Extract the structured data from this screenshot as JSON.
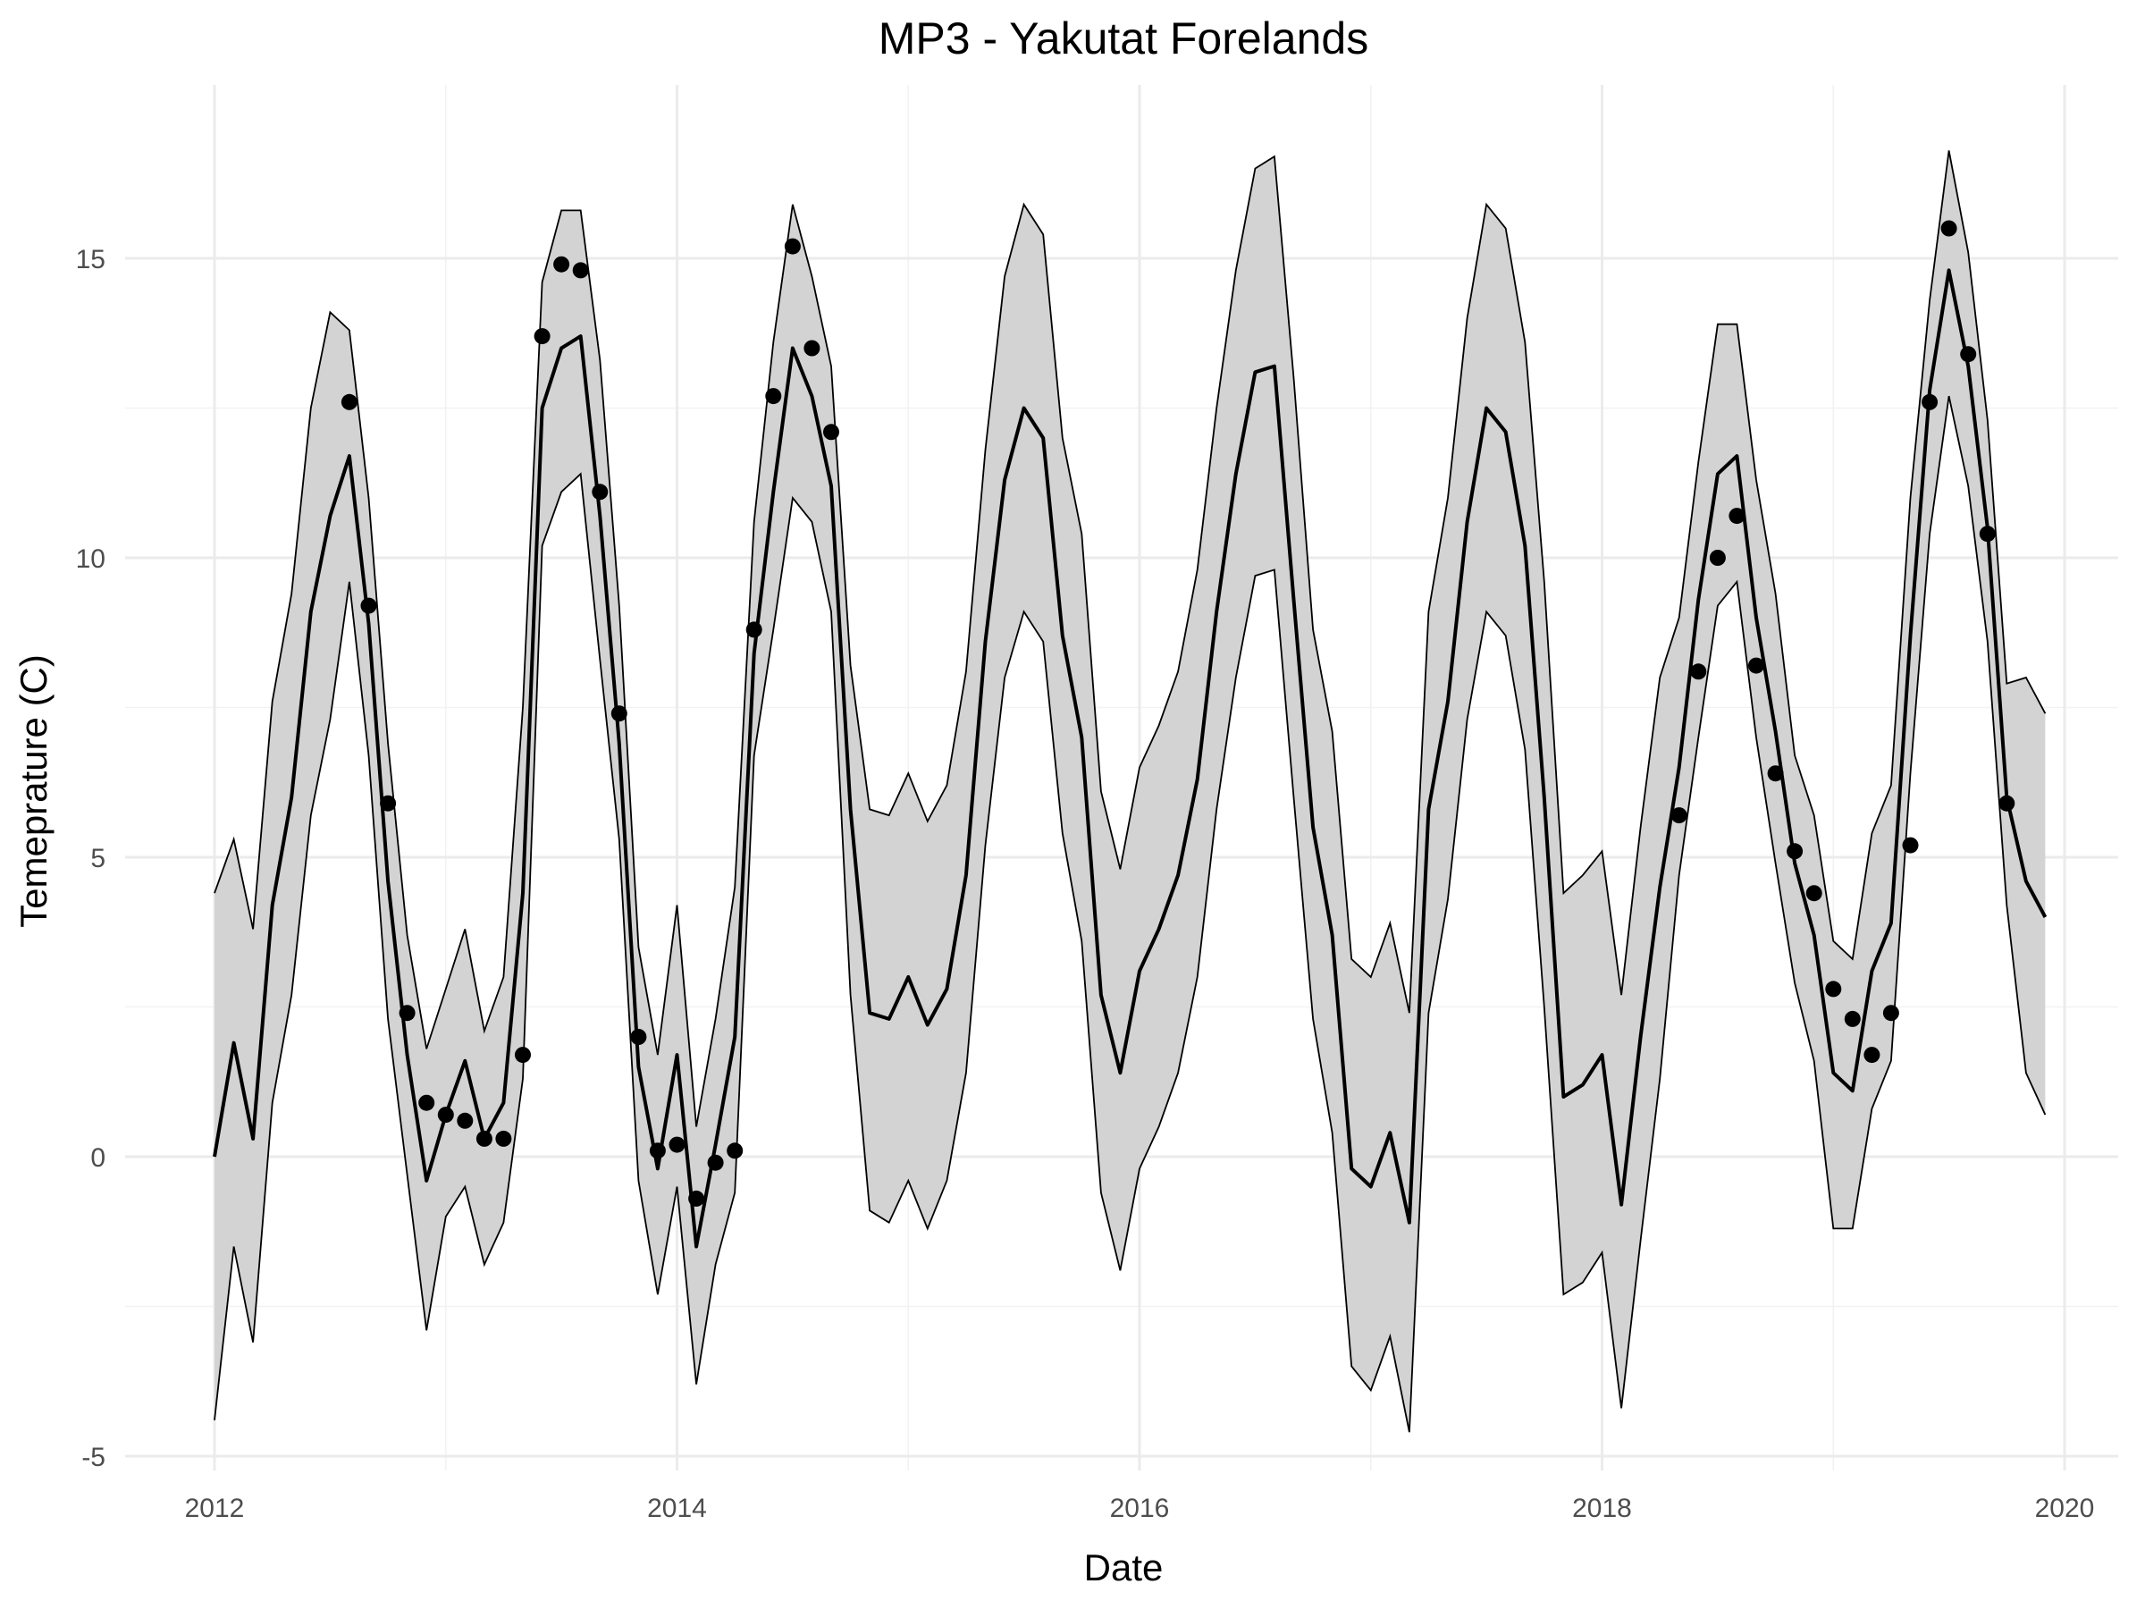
{
  "chart_data": {
    "type": "line",
    "title": "MP3 - Yakutat Forelands",
    "xlabel": "Date",
    "ylabel": "Temeprature (C)",
    "xlim": [
      2012,
      2020
    ],
    "ylim": [
      -5,
      17
    ],
    "x_ticks": [
      "2012",
      "2014",
      "2016",
      "2018",
      "2020"
    ],
    "y_ticks": [
      "-5",
      "0",
      "5",
      "10",
      "15"
    ],
    "grid": true,
    "colors": {
      "band": "#d3d3d3",
      "line": "#000000",
      "points": "#000000"
    },
    "series": [
      {
        "type": "line-with-ribbon",
        "x": [
          "2012-01",
          "2012-02",
          "2012-03",
          "2012-04",
          "2012-05",
          "2012-06",
          "2012-07",
          "2012-08",
          "2012-09",
          "2012-10",
          "2012-11",
          "2012-12",
          "2013-01",
          "2013-02",
          "2013-03",
          "2013-04",
          "2013-05",
          "2013-06",
          "2013-07",
          "2013-08",
          "2013-09",
          "2013-10",
          "2013-11",
          "2013-12",
          "2014-01",
          "2014-02",
          "2014-03",
          "2014-04",
          "2014-05",
          "2014-06",
          "2014-07",
          "2014-08",
          "2014-09",
          "2014-10",
          "2014-11",
          "2014-12",
          "2015-01",
          "2015-02",
          "2015-03",
          "2015-04",
          "2015-05",
          "2015-06",
          "2015-07",
          "2015-08",
          "2015-09",
          "2015-10",
          "2015-11",
          "2015-12",
          "2016-01",
          "2016-02",
          "2016-03",
          "2016-04",
          "2016-05",
          "2016-06",
          "2016-07",
          "2016-08",
          "2016-09",
          "2016-10",
          "2016-11",
          "2016-12",
          "2017-01",
          "2017-02",
          "2017-03",
          "2017-04",
          "2017-05",
          "2017-06",
          "2017-07",
          "2017-08",
          "2017-09",
          "2017-10",
          "2017-11",
          "2017-12",
          "2018-01",
          "2018-02",
          "2018-03",
          "2018-04",
          "2018-05",
          "2018-06",
          "2018-07",
          "2018-08",
          "2018-09",
          "2018-10",
          "2018-11",
          "2018-12",
          "2019-01",
          "2019-02",
          "2019-03",
          "2019-04",
          "2019-05",
          "2019-06",
          "2019-07",
          "2019-08",
          "2019-09",
          "2019-10",
          "2019-11",
          "2019-12"
        ],
        "mean": [
          0.0,
          1.9,
          0.3,
          4.2,
          6.0,
          9.1,
          10.7,
          11.7,
          8.9,
          4.6,
          1.7,
          -0.4,
          0.7,
          1.6,
          0.3,
          0.9,
          4.4,
          12.5,
          13.5,
          13.7,
          10.7,
          6.9,
          1.5,
          -0.2,
          1.7,
          -1.5,
          0.2,
          2.0,
          8.4,
          11.1,
          13.5,
          12.7,
          11.2,
          5.8,
          2.4,
          2.3,
          3.0,
          2.2,
          2.8,
          4.7,
          8.6,
          11.3,
          12.5,
          12.0,
          8.7,
          7.0,
          2.7,
          1.4,
          3.1,
          3.8,
          4.7,
          6.3,
          9.1,
          11.4,
          13.1,
          13.2,
          9.3,
          5.5,
          3.7,
          -0.2,
          -0.5,
          0.4,
          -1.1,
          5.8,
          7.6,
          10.6,
          12.5,
          12.1,
          10.2,
          6.0,
          1.0,
          1.2,
          1.7,
          -0.8,
          2.0,
          4.5,
          6.5,
          9.3,
          11.4,
          11.7,
          9.0,
          7.1,
          4.9,
          3.7,
          1.4,
          1.1,
          3.1,
          3.9,
          8.7,
          12.8,
          14.8,
          13.2,
          10.5,
          6.0,
          4.6,
          4.0
        ],
        "upper": [
          4.4,
          5.3,
          3.8,
          7.6,
          9.4,
          12.5,
          14.1,
          13.8,
          11.0,
          6.9,
          3.7,
          1.8,
          2.8,
          3.8,
          2.1,
          3.0,
          7.5,
          14.6,
          15.8,
          15.8,
          13.3,
          9.2,
          3.5,
          1.7,
          4.2,
          0.5,
          2.3,
          4.5,
          10.6,
          13.6,
          15.9,
          14.7,
          13.2,
          8.2,
          5.8,
          5.7,
          6.4,
          5.6,
          6.2,
          8.1,
          11.8,
          14.7,
          15.9,
          15.4,
          12.0,
          10.4,
          6.1,
          4.8,
          6.5,
          7.2,
          8.1,
          9.8,
          12.5,
          14.8,
          16.5,
          16.7,
          13.0,
          8.8,
          7.1,
          3.3,
          3.0,
          3.9,
          2.4,
          9.1,
          11.0,
          14.0,
          15.9,
          15.5,
          13.6,
          9.6,
          4.4,
          4.7,
          5.1,
          2.7,
          5.5,
          8.0,
          9.0,
          11.6,
          13.9,
          13.9,
          11.3,
          9.4,
          6.7,
          5.7,
          3.6,
          3.3,
          5.4,
          6.2,
          11.0,
          14.3,
          16.8,
          15.1,
          12.3,
          7.9,
          8.0,
          7.4
        ],
        "lower": [
          -4.4,
          -1.5,
          -3.1,
          0.9,
          2.7,
          5.7,
          7.3,
          9.6,
          6.7,
          2.3,
          -0.3,
          -2.9,
          -1.0,
          -0.5,
          -1.8,
          -1.1,
          1.3,
          10.2,
          11.1,
          11.4,
          8.3,
          5.3,
          -0.4,
          -2.3,
          -0.5,
          -3.8,
          -1.8,
          -0.6,
          6.7,
          8.8,
          11.0,
          10.6,
          9.1,
          2.7,
          -0.9,
          -1.1,
          -0.4,
          -1.2,
          -0.4,
          1.4,
          5.2,
          8.0,
          9.1,
          8.6,
          5.4,
          3.6,
          -0.6,
          -1.9,
          -0.2,
          0.5,
          1.4,
          3.0,
          5.8,
          8.0,
          9.7,
          9.8,
          6.0,
          2.3,
          0.4,
          -3.5,
          -3.9,
          -3.0,
          -4.6,
          2.4,
          4.3,
          7.3,
          9.1,
          8.7,
          6.8,
          2.5,
          -2.3,
          -2.1,
          -1.6,
          -4.2,
          -1.4,
          1.3,
          4.7,
          7.0,
          9.2,
          9.6,
          7.0,
          4.9,
          2.9,
          1.6,
          -1.2,
          -1.2,
          0.8,
          1.6,
          6.4,
          10.4,
          12.7,
          11.2,
          8.6,
          4.2,
          1.4,
          0.7
        ]
      },
      {
        "type": "scatter",
        "x": [
          "2012-08",
          "2012-09",
          "2012-10",
          "2012-11",
          "2012-12",
          "2013-01",
          "2013-02",
          "2013-03",
          "2013-04",
          "2013-05",
          "2013-06",
          "2013-07",
          "2013-08",
          "2013-09",
          "2013-10",
          "2013-11",
          "2013-12",
          "2014-01",
          "2014-02",
          "2014-03",
          "2014-04",
          "2014-05",
          "2014-06",
          "2014-07",
          "2014-08",
          "2014-09",
          "2018-05",
          "2018-06",
          "2018-07",
          "2018-08",
          "2018-09",
          "2018-10",
          "2018-11",
          "2018-12",
          "2019-01",
          "2019-02",
          "2019-03",
          "2019-04",
          "2019-05",
          "2019-06",
          "2019-07",
          "2019-08",
          "2019-09",
          "2019-10"
        ],
        "values": [
          12.6,
          9.2,
          5.9,
          2.4,
          0.9,
          0.7,
          0.6,
          0.3,
          0.3,
          1.7,
          13.7,
          14.9,
          14.8,
          11.1,
          7.4,
          2.0,
          0.1,
          0.2,
          -0.7,
          -0.1,
          0.1,
          8.8,
          12.7,
          15.2,
          13.5,
          12.1,
          5.7,
          8.1,
          10.0,
          10.7,
          8.2,
          6.4,
          5.1,
          4.4,
          2.8,
          2.3,
          1.7,
          2.4,
          5.2,
          12.6,
          15.5,
          13.4,
          10.4,
          5.9
        ]
      }
    ]
  }
}
